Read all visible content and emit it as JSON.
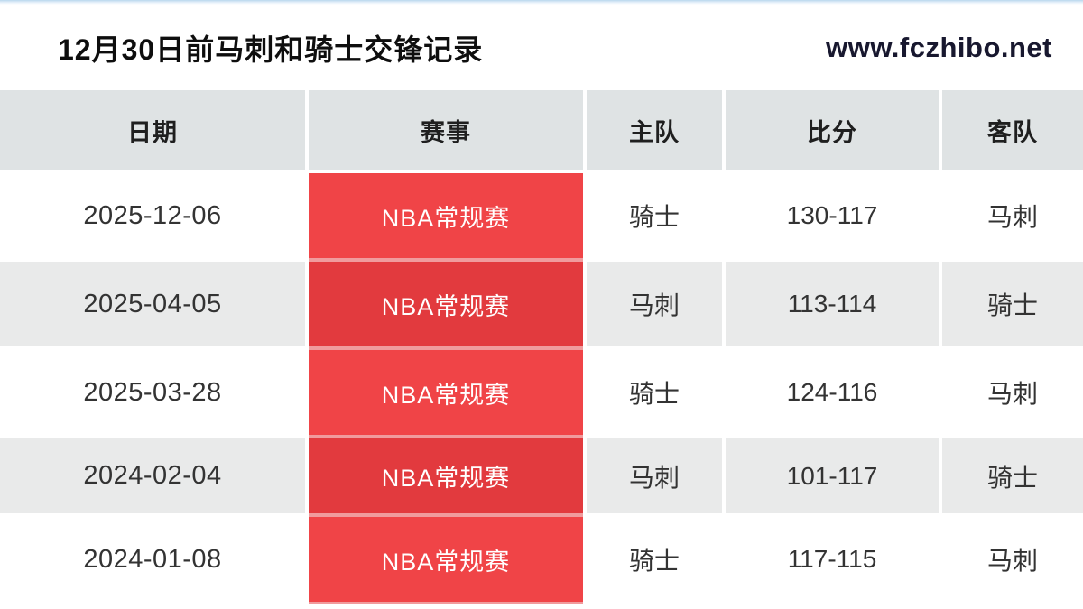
{
  "header": {
    "title": "12月30日前马刺和骑士交锋记录",
    "site": "www.fczhibo.net"
  },
  "table": {
    "columns": [
      "日期",
      "赛事",
      "主队",
      "比分",
      "客队"
    ],
    "rows": [
      {
        "date": "2025-12-06",
        "competition": "NBA常规赛",
        "home": "骑士",
        "score": "130-117",
        "away": "马刺"
      },
      {
        "date": "2025-04-05",
        "competition": "NBA常规赛",
        "home": "马刺",
        "score": "113-114",
        "away": "骑士"
      },
      {
        "date": "2025-03-28",
        "competition": "NBA常规赛",
        "home": "骑士",
        "score": "124-116",
        "away": "马刺"
      },
      {
        "date": "2024-02-04",
        "competition": "NBA常规赛",
        "home": "马刺",
        "score": "101-117",
        "away": "骑士"
      },
      {
        "date": "2024-01-08",
        "competition": "NBA常规赛",
        "home": "骑士",
        "score": "117-115",
        "away": "马刺"
      }
    ]
  },
  "colors": {
    "competition_red_bright": "#f04447",
    "competition_red_dark": "#e23a3e",
    "header_row_bg": "#dfe3e4",
    "alt_row_bg": "#e9eaea",
    "red_column_divider": "#f09b9d",
    "top_border_blue": "#b9d7ee",
    "site_text": "#18182f"
  }
}
